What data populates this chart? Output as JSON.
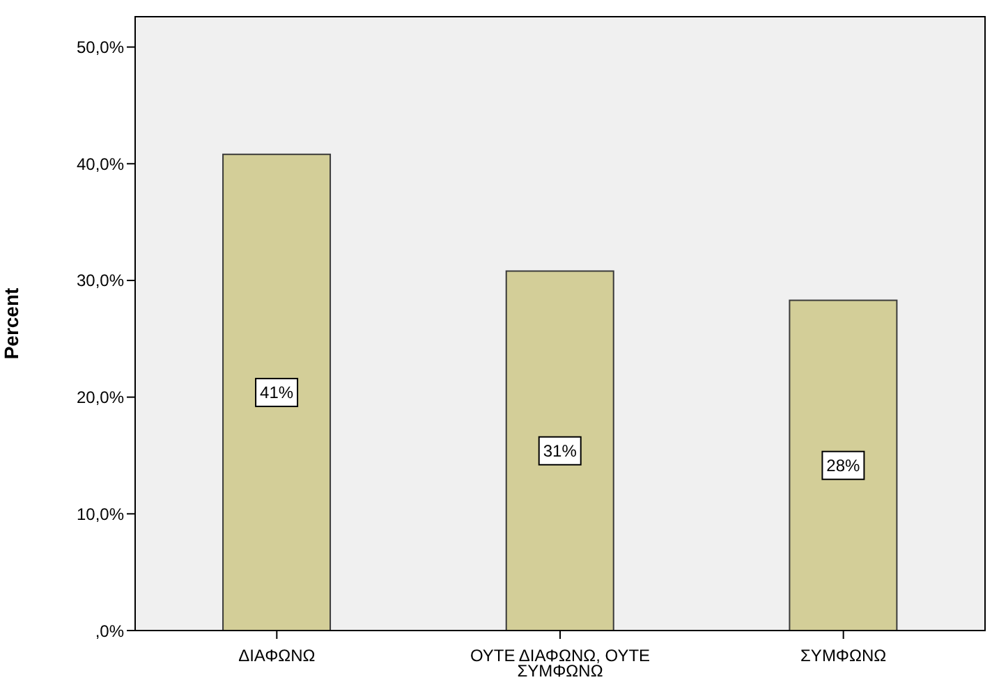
{
  "chart_data": {
    "type": "bar",
    "ylabel": "Percent",
    "categories": [
      "ΔΙΑΦΩΝΩ",
      "ΟΥΤΕ ΔΙΑΦΩΝΩ, ΟΥΤΕ ΣΥΜΦΩΝΩ",
      "ΣΥΜΦΩΝΩ"
    ],
    "values": [
      40.8,
      30.8,
      28.3
    ],
    "value_labels": [
      "41%",
      "31%",
      "28%"
    ],
    "color": "#d3ce98",
    "ylim": [
      0,
      52.6
    ],
    "yticks": [
      {
        "value": 0,
        "label": ",0%"
      },
      {
        "value": 10,
        "label": "10,0%"
      },
      {
        "value": 20,
        "label": "20,0%"
      },
      {
        "value": 30,
        "label": "30,0%"
      },
      {
        "value": 40,
        "label": "40,0%"
      },
      {
        "value": 50,
        "label": "50,0%"
      }
    ]
  }
}
